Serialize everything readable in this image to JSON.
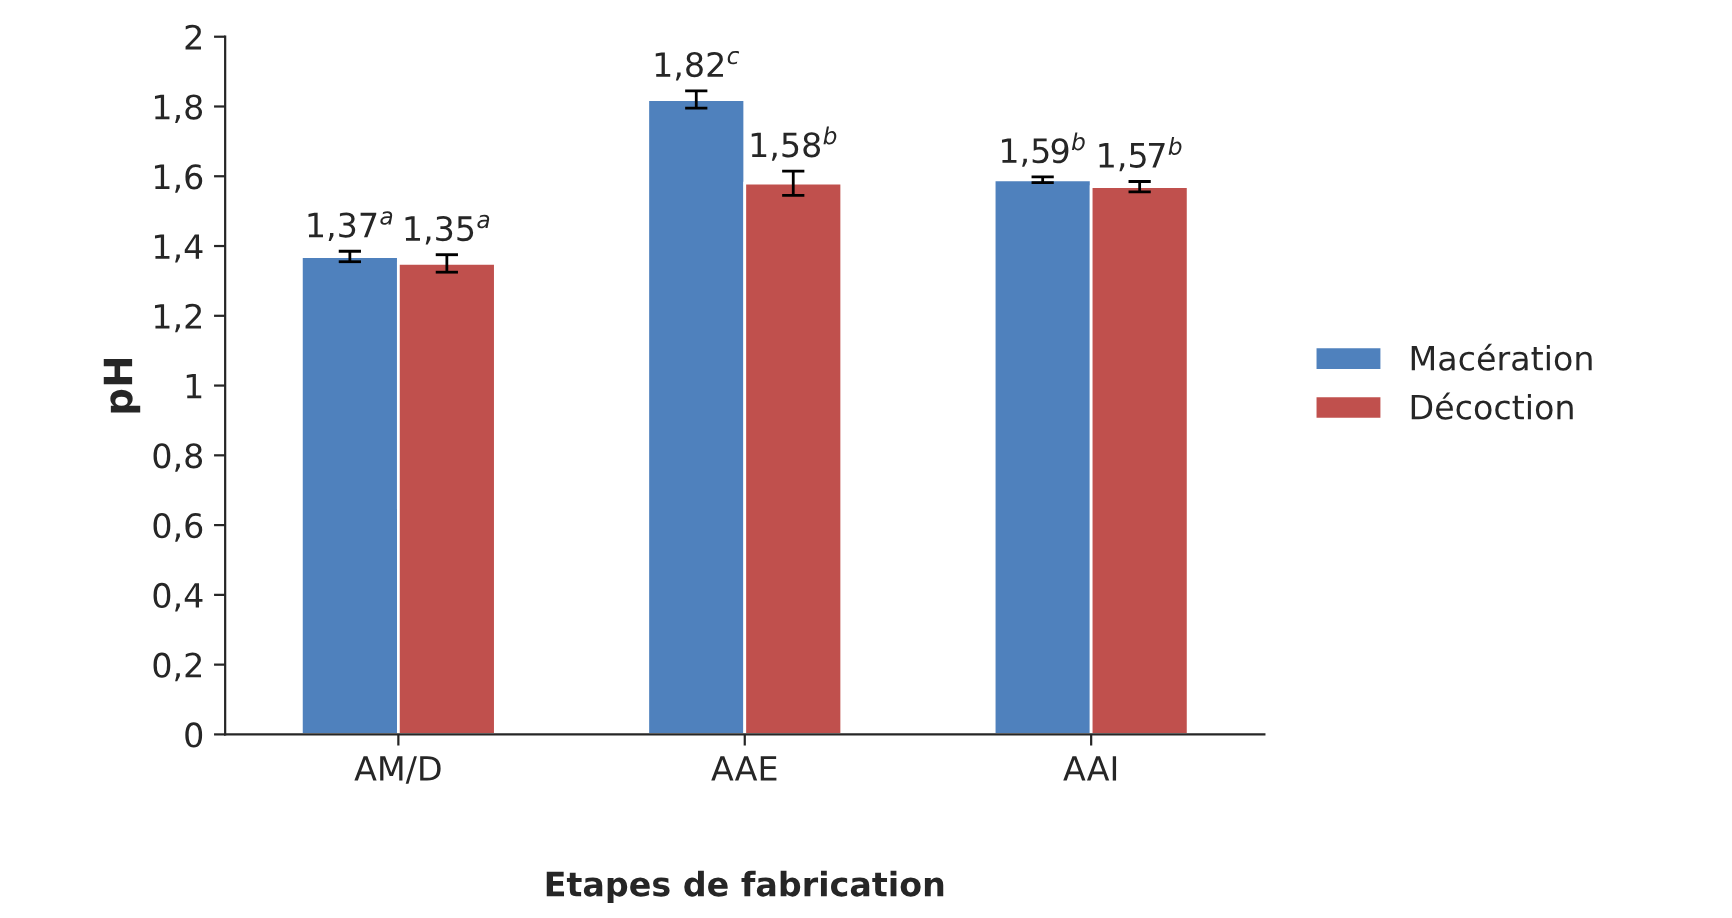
{
  "chart_data": {
    "type": "bar",
    "xlabel": "Etapes de fabrication",
    "ylabel": "pH",
    "categories": [
      "AM/D",
      "AAE",
      "AAI"
    ],
    "series": [
      {
        "name": "Macération",
        "color": "#4f81bd",
        "values": [
          1.37,
          1.82,
          1.59
        ],
        "errors": [
          0.015,
          0.025,
          0.008
        ],
        "value_labels": [
          "1,37$^{a}$",
          "1,82$^{c}$",
          "1,59$^{b}$"
        ]
      },
      {
        "name": "Décoction",
        "color": "#c0504d",
        "values": [
          1.35,
          1.58,
          1.57
        ],
        "errors": [
          0.025,
          0.035,
          0.015
        ],
        "value_labels": [
          "1,35$^{a}$",
          "1,58$^{b}$",
          "1,57$^{b}$"
        ]
      }
    ],
    "ylim": [
      0,
      2
    ],
    "yticks": [
      0,
      {
        "value": 0.2,
        "label": "0,2"
      },
      {
        "value": 0.4,
        "label": "0,4"
      },
      {
        "value": 0.6,
        "label": "0,6"
      },
      {
        "value": 0.8,
        "label": "0,8"
      },
      1,
      {
        "value": 1.2,
        "label": "1,2"
      },
      {
        "value": 1.4,
        "label": "1,4"
      },
      {
        "value": 1.6,
        "label": "1,6"
      },
      {
        "value": 1.8,
        "label": "1,8"
      },
      2
    ],
    "grid": false,
    "legend": "right"
  }
}
